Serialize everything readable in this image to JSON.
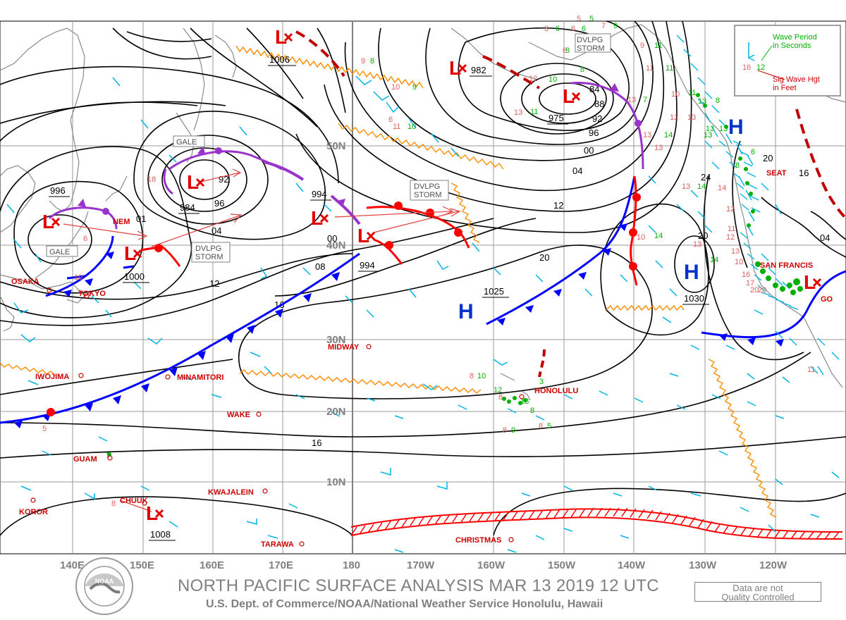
{
  "footer": {
    "title": "NORTH PACIFIC SURFACE ANALYSIS MAR 13 2019 12 UTC",
    "subtitle": "U.S. Dept. of Commerce/NOAA/National Weather Service Honolulu, Hawaii",
    "quality_line1": "Data are not",
    "quality_line2": "Quality Controlled",
    "logo_text": "NOAA"
  },
  "legend": {
    "period_label_1": "Wave Period",
    "period_label_2": "in Seconds",
    "height_label_1": "Sig Wave Hgt",
    "height_label_2": "in Feet",
    "sample_period": "12",
    "sample_height": "16"
  },
  "lon_labels": [
    "140E",
    "150E",
    "160E",
    "170E",
    "180",
    "170W",
    "160W",
    "150W",
    "140W",
    "130W",
    "120W"
  ],
  "lat_labels": [
    "50N",
    "40N",
    "30N",
    "20N",
    "10N"
  ],
  "pressure_systems": [
    {
      "type": "L",
      "label": "1006",
      "warning": ""
    },
    {
      "type": "L",
      "label": "982",
      "warning": ""
    },
    {
      "type": "L",
      "label": "975",
      "warning": "DVLPG STORM"
    },
    {
      "type": "L",
      "label": "984",
      "warning": "GALE"
    },
    {
      "type": "L",
      "label": "996",
      "warning": "GALE"
    },
    {
      "type": "L",
      "label": "1000",
      "warning": "DVLPG STORM"
    },
    {
      "type": "L",
      "label": "994",
      "warning": ""
    },
    {
      "type": "L",
      "label": "994",
      "warning": "DVLPG STORM"
    },
    {
      "type": "L",
      "label": "1008",
      "warning": ""
    },
    {
      "type": "H",
      "label": "1025",
      "warning": ""
    },
    {
      "type": "H",
      "label": "1030",
      "warning": ""
    },
    {
      "type": "H",
      "label": "",
      "warning": ""
    }
  ],
  "isobar_labels": [
    "84",
    "88",
    "92",
    "96",
    "00",
    "04",
    "12",
    "20",
    "16",
    "08",
    "12",
    "16",
    "24",
    "20",
    "16",
    "04",
    "92",
    "96",
    "01",
    "04",
    "00",
    "08",
    "12"
  ],
  "cities": [
    "OSAKA",
    "TOKYO",
    "NEMURO",
    "IWOJIMA",
    "MINAMITORI",
    "MIDWAY",
    "WAKE",
    "GUAM",
    "KWAJALEIN",
    "KOROR",
    "CHUUK",
    "TARAWA",
    "HONOLULU",
    "CHRISTMAS",
    "SEATTLE",
    "SAN FRANCISCO",
    "SAN DIEGO"
  ],
  "city_display": {
    "osaka": "OSAKA",
    "tokyo": "TOKYO",
    "nemuro": "NEM",
    "iwojima": "IWOJIMA",
    "minamitori": "MINAMITORI",
    "midway": "MIDWAY",
    "wake": "WAKE",
    "guam": "GUAM",
    "kwajalein": "KWAJALEIN",
    "koror": "KOROR",
    "chuuk": "CHUUK",
    "tarawa": "TARAWA",
    "honolulu": "HONOLULU",
    "christmas": "CHRISTMAS",
    "seattle": "SEAT",
    "sanfrancisco": "SAN FRANCIS",
    "sandiego": "GO"
  },
  "colors": {
    "isobar": "#000000",
    "cold_front": "#0000ff",
    "warm_front": "#ff0000",
    "occluded_front": "#9933cc",
    "trough": "#ff8c00",
    "ice_edge": "#ff0000",
    "wind_barb": "#00b4e6",
    "wave_period": "#00b000",
    "wave_height": "#e06060",
    "grid": "#808080",
    "label": "#cc0000"
  }
}
